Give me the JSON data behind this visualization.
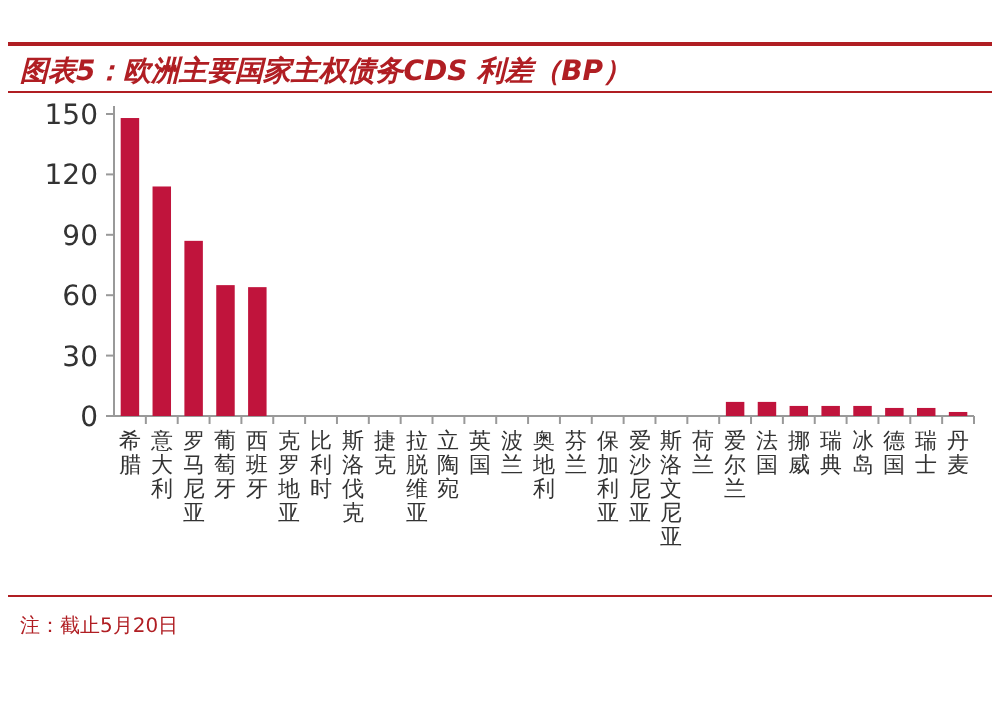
{
  "chart_data": {
    "type": "bar",
    "title": "图表5：欧洲主要国家主权债务CDS 利差（BP）",
    "categories": [
      "希腊",
      "意大利",
      "罗马尼亚",
      "葡萄牙",
      "西班牙",
      "克罗地亚",
      "比利时",
      "斯洛伐克",
      "捷克",
      "拉脱维亚",
      "立陶宛",
      "英国",
      "波兰",
      "奥地利",
      "芬兰",
      "保加利亚",
      "爱沙尼亚",
      "斯洛文尼亚",
      "荷兰",
      "爱尔兰",
      "法国",
      "挪威",
      "瑞典",
      "冰岛",
      "德国",
      "瑞士",
      "丹麦"
    ],
    "values": [
      148,
      114,
      87,
      65,
      64,
      null,
      null,
      null,
      null,
      null,
      null,
      null,
      null,
      null,
      null,
      null,
      null,
      null,
      null,
      7,
      7,
      5,
      5,
      5,
      4,
      4,
      2
    ],
    "color": "#c0143c",
    "ylim": [
      0,
      150
    ],
    "yticks": [
      0,
      30,
      60,
      90,
      120,
      150
    ],
    "annotations": [
      "注：截止5月20日"
    ]
  }
}
